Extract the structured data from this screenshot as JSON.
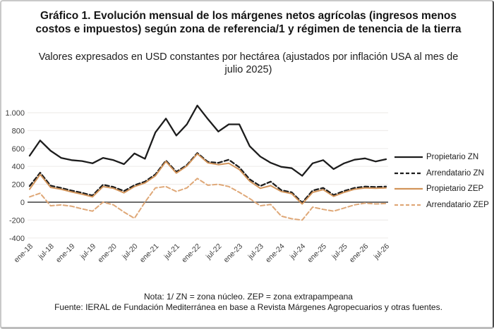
{
  "card": {
    "title": "Gráfico 1. Evolución mensual de los márgenes netos agrícolas (ingresos menos costos e impuestos) según zona de referencia/1 y régimen de tenencia de la tierra",
    "subtitle": "Valores expresados en USD constantes por hectárea (ajustados por inflación USA al mes de julio 2025)",
    "note": "Nota: 1/ ZN = zona núcleo. ZEP = zona extrapampeana",
    "source": "Fuente: IERAL de Fundación Mediterránea en base a Revista Márgenes Agropecuarios y otras fuentes."
  },
  "chart_data": {
    "type": "line",
    "x": [
      "ene-18",
      "abr-18",
      "jul-18",
      "oct-18",
      "ene-19",
      "abr-19",
      "jul-19",
      "oct-19",
      "ene-20",
      "abr-20",
      "jul-20",
      "oct-20",
      "ene-21",
      "abr-21",
      "jul-21",
      "oct-21",
      "ene-22",
      "abr-22",
      "jul-22",
      "oct-22",
      "ene-23",
      "abr-23",
      "jul-23",
      "oct-23",
      "ene-24",
      "abr-24",
      "jul-24",
      "oct-24",
      "ene-25",
      "abr-25",
      "jul-25",
      "oct-25",
      "ene-26",
      "abr-26",
      "jul-26"
    ],
    "x_tick_labels": [
      "ene-18",
      "jul-18",
      "ene-19",
      "jul-19",
      "ene-20",
      "jul-20",
      "ene-21",
      "jul-21",
      "ene-22",
      "jul-22",
      "ene-23",
      "jul-23",
      "ene-24",
      "jul-24",
      "ene-25",
      "jul-25",
      "ene-26",
      "jul-26"
    ],
    "y_ticks": [
      "1.000",
      "800",
      "600",
      "400",
      "200",
      "0",
      "-200",
      "-400"
    ],
    "y_tick_values": [
      1000,
      800,
      600,
      400,
      200,
      0,
      -200,
      -400
    ],
    "ylim": [
      -400,
      1080
    ],
    "grid": "horizontal-light",
    "zero_line": true,
    "legend_position": "right",
    "colors": {
      "black": "#1c1c1c",
      "orange_solid": "#d2945a",
      "orange_dashed": "#dfa878",
      "zero_line": "#6d6d6d",
      "gridline": "#efedeb",
      "tick_text": "#3c3c3c"
    },
    "series": [
      {
        "name": "Propietario ZN",
        "color": "#1c1c1c",
        "dash": "solid",
        "values": [
          520,
          690,
          575,
          495,
          470,
          460,
          435,
          495,
          470,
          425,
          545,
          485,
          780,
          935,
          745,
          870,
          1080,
          930,
          790,
          870,
          870,
          625,
          510,
          440,
          395,
          380,
          295,
          435,
          470,
          370,
          435,
          475,
          490,
          455,
          480
        ]
      },
      {
        "name": "Arrendatario ZN",
        "color": "#1c1c1c",
        "dash": "dashed",
        "values": [
          180,
          330,
          185,
          160,
          130,
          105,
          75,
          195,
          170,
          125,
          190,
          230,
          310,
          465,
          340,
          415,
          550,
          450,
          440,
          475,
          390,
          255,
          180,
          230,
          135,
          110,
          -5,
          130,
          160,
          80,
          125,
          160,
          175,
          170,
          175
        ]
      },
      {
        "name": "Propietario ZEP",
        "color": "#d2945a",
        "dash": "solid",
        "values": [
          145,
          310,
          165,
          145,
          115,
          90,
          60,
          175,
          155,
          105,
          175,
          215,
          295,
          455,
          325,
          405,
          540,
          440,
          420,
          435,
          365,
          235,
          155,
          185,
          120,
          95,
          -20,
          110,
          140,
          65,
          110,
          145,
          160,
          155,
          160
        ]
      },
      {
        "name": "Arrendatario ZEP",
        "color": "#dfa878",
        "dash": "dashed",
        "values": [
          60,
          100,
          -40,
          -30,
          -45,
          -75,
          -100,
          0,
          -30,
          -110,
          -180,
          0,
          160,
          175,
          120,
          160,
          265,
          190,
          200,
          175,
          110,
          40,
          -40,
          -25,
          -155,
          -185,
          -200,
          -55,
          -80,
          -100,
          -65,
          -30,
          -10,
          -20,
          -15
        ]
      }
    ]
  }
}
